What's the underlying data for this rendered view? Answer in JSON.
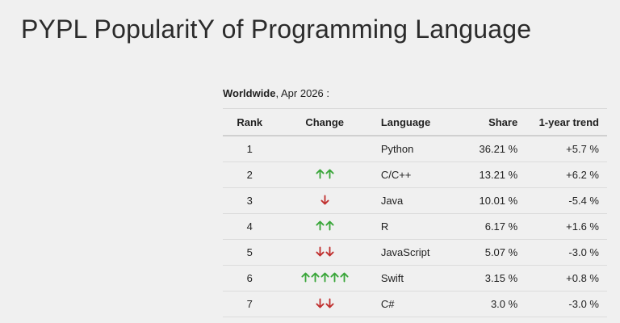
{
  "page": {
    "title": "PYPL PopularitY of Programming Language",
    "subtitle_bold": "Worldwide",
    "subtitle_rest": ", Apr 2026 :"
  },
  "colors": {
    "up": "#3aa63a",
    "down": "#c0302f"
  },
  "table": {
    "headers": {
      "rank": "Rank",
      "change": "Change",
      "language": "Language",
      "share": "Share",
      "trend": "1-year trend"
    },
    "rows": [
      {
        "rank": "1",
        "change": {
          "dir": "none",
          "count": 0
        },
        "language": "Python",
        "share": "36.21 %",
        "trend": "+5.7 %"
      },
      {
        "rank": "2",
        "change": {
          "dir": "up",
          "count": 2
        },
        "language": "C/C++",
        "share": "13.21 %",
        "trend": "+6.2 %"
      },
      {
        "rank": "3",
        "change": {
          "dir": "down",
          "count": 1
        },
        "language": "Java",
        "share": "10.01 %",
        "trend": "-5.4 %"
      },
      {
        "rank": "4",
        "change": {
          "dir": "up",
          "count": 2
        },
        "language": "R",
        "share": "6.17 %",
        "trend": "+1.6 %"
      },
      {
        "rank": "5",
        "change": {
          "dir": "down",
          "count": 2
        },
        "language": "JavaScript",
        "share": "5.07 %",
        "trend": "-3.0 %"
      },
      {
        "rank": "6",
        "change": {
          "dir": "up",
          "count": 5
        },
        "language": "Swift",
        "share": "3.15 %",
        "trend": "+0.8 %"
      },
      {
        "rank": "7",
        "change": {
          "dir": "down",
          "count": 2
        },
        "language": "C#",
        "share": "3.0 %",
        "trend": "-3.0 %"
      }
    ]
  }
}
